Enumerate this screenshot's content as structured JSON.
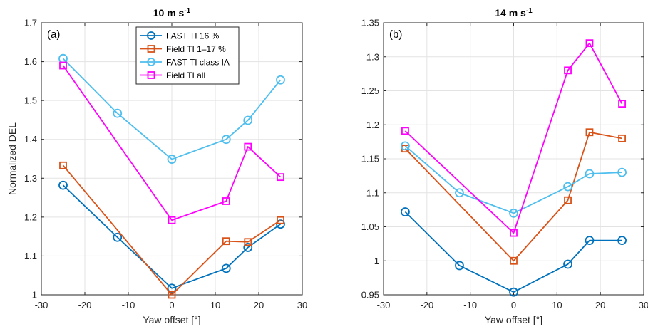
{
  "chart_data": [
    {
      "type": "line",
      "panel_label": "(a)",
      "title_main": "10 m s",
      "title_sup": "-1",
      "xlabel": "Yaw offset [°]",
      "ylabel": "Normalized DEL",
      "xlim": [
        -30,
        30
      ],
      "ylim": [
        1.0,
        1.7
      ],
      "xticks": [
        -30,
        -20,
        -10,
        0,
        10,
        20,
        30
      ],
      "yticks": [
        1,
        1.1,
        1.2,
        1.3,
        1.4,
        1.5,
        1.6,
        1.7
      ],
      "ytick_labels": [
        "1",
        "1.1",
        "1.2",
        "1.3",
        "1.4",
        "1.5",
        "1.6",
        "1.7"
      ],
      "grid": true,
      "legend_position": "top-center",
      "series": [
        {
          "name": "FAST TI 16 %",
          "color": "#0072BD",
          "marker": "circle",
          "x": [
            -25,
            -12.5,
            0,
            12.5,
            17.5,
            25
          ],
          "y": [
            1.282,
            1.148,
            1.017,
            1.068,
            1.122,
            1.182
          ]
        },
        {
          "name": "Field TI 1–17 %",
          "color": "#D95319",
          "marker": "square",
          "x": [
            -25,
            0,
            12.5,
            17.5,
            25
          ],
          "y": [
            1.333,
            1.0,
            1.138,
            1.136,
            1.192
          ]
        },
        {
          "name": "FAST TI class IA",
          "color": "#4DBEEE",
          "marker": "circle",
          "x": [
            -25,
            -12.5,
            0,
            12.5,
            17.5,
            25
          ],
          "y": [
            1.608,
            1.467,
            1.349,
            1.4,
            1.449,
            1.553
          ]
        },
        {
          "name": "Field TI all",
          "color": "#FF00FF",
          "marker": "square",
          "x": [
            -25,
            0,
            12.5,
            17.5,
            25
          ],
          "y": [
            1.59,
            1.192,
            1.241,
            1.381,
            1.303
          ]
        }
      ]
    },
    {
      "type": "line",
      "panel_label": "(b)",
      "title_main": "14 m s",
      "title_sup": "-1",
      "xlabel": "Yaw offset [°]",
      "ylabel": "",
      "xlim": [
        -30,
        30
      ],
      "ylim": [
        0.95,
        1.35
      ],
      "xticks": [
        -30,
        -20,
        -10,
        0,
        10,
        20,
        30
      ],
      "yticks": [
        0.95,
        1.0,
        1.05,
        1.1,
        1.15,
        1.2,
        1.25,
        1.3,
        1.35
      ],
      "ytick_labels": [
        "0.95",
        "1",
        "1.05",
        "1.1",
        "1.15",
        "1.2",
        "1.25",
        "1.3",
        "1.35"
      ],
      "grid": true,
      "series": [
        {
          "name": "FAST TI 16 %",
          "color": "#0072BD",
          "marker": "circle",
          "x": [
            -25,
            -12.5,
            0,
            12.5,
            17.5,
            25
          ],
          "y": [
            1.072,
            0.993,
            0.954,
            0.995,
            1.03,
            1.03
          ]
        },
        {
          "name": "Field TI 1–17 %",
          "color": "#D95319",
          "marker": "square",
          "x": [
            -25,
            0,
            12.5,
            17.5,
            25
          ],
          "y": [
            1.165,
            1.0,
            1.089,
            1.189,
            1.18
          ]
        },
        {
          "name": "FAST TI class IA",
          "color": "#4DBEEE",
          "marker": "circle",
          "x": [
            -25,
            -12.5,
            0,
            12.5,
            17.5,
            25
          ],
          "y": [
            1.169,
            1.1,
            1.07,
            1.109,
            1.128,
            1.13
          ]
        },
        {
          "name": "Field TI all",
          "color": "#FF00FF",
          "marker": "square",
          "x": [
            -25,
            0,
            12.5,
            17.5,
            25
          ],
          "y": [
            1.191,
            1.041,
            1.28,
            1.32,
            1.231
          ]
        }
      ]
    }
  ]
}
